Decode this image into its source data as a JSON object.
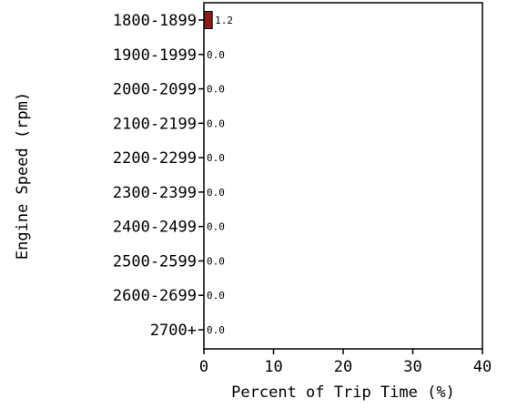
{
  "chart_data": {
    "type": "bar",
    "orientation": "horizontal",
    "categories": [
      "1800-1899",
      "1900-1999",
      "2000-2099",
      "2100-2199",
      "2200-2299",
      "2300-2399",
      "2400-2499",
      "2500-2599",
      "2600-2699",
      "2700+"
    ],
    "values": [
      1.2,
      0.0,
      0.0,
      0.0,
      0.0,
      0.0,
      0.0,
      0.0,
      0.0,
      0.0
    ],
    "data_labels": [
      "1.2",
      "0.0",
      "0.0",
      "0.0",
      "0.0",
      "0.0",
      "0.0",
      "0.0",
      "0.0",
      "0.0"
    ],
    "xlabel": "Percent of Trip Time (%)",
    "ylabel": "Engine Speed (rpm)",
    "xlim": [
      0,
      40
    ],
    "xticks": [
      0,
      10,
      20,
      30,
      40
    ],
    "grid": false,
    "bar_color": "#8b1a1a"
  }
}
